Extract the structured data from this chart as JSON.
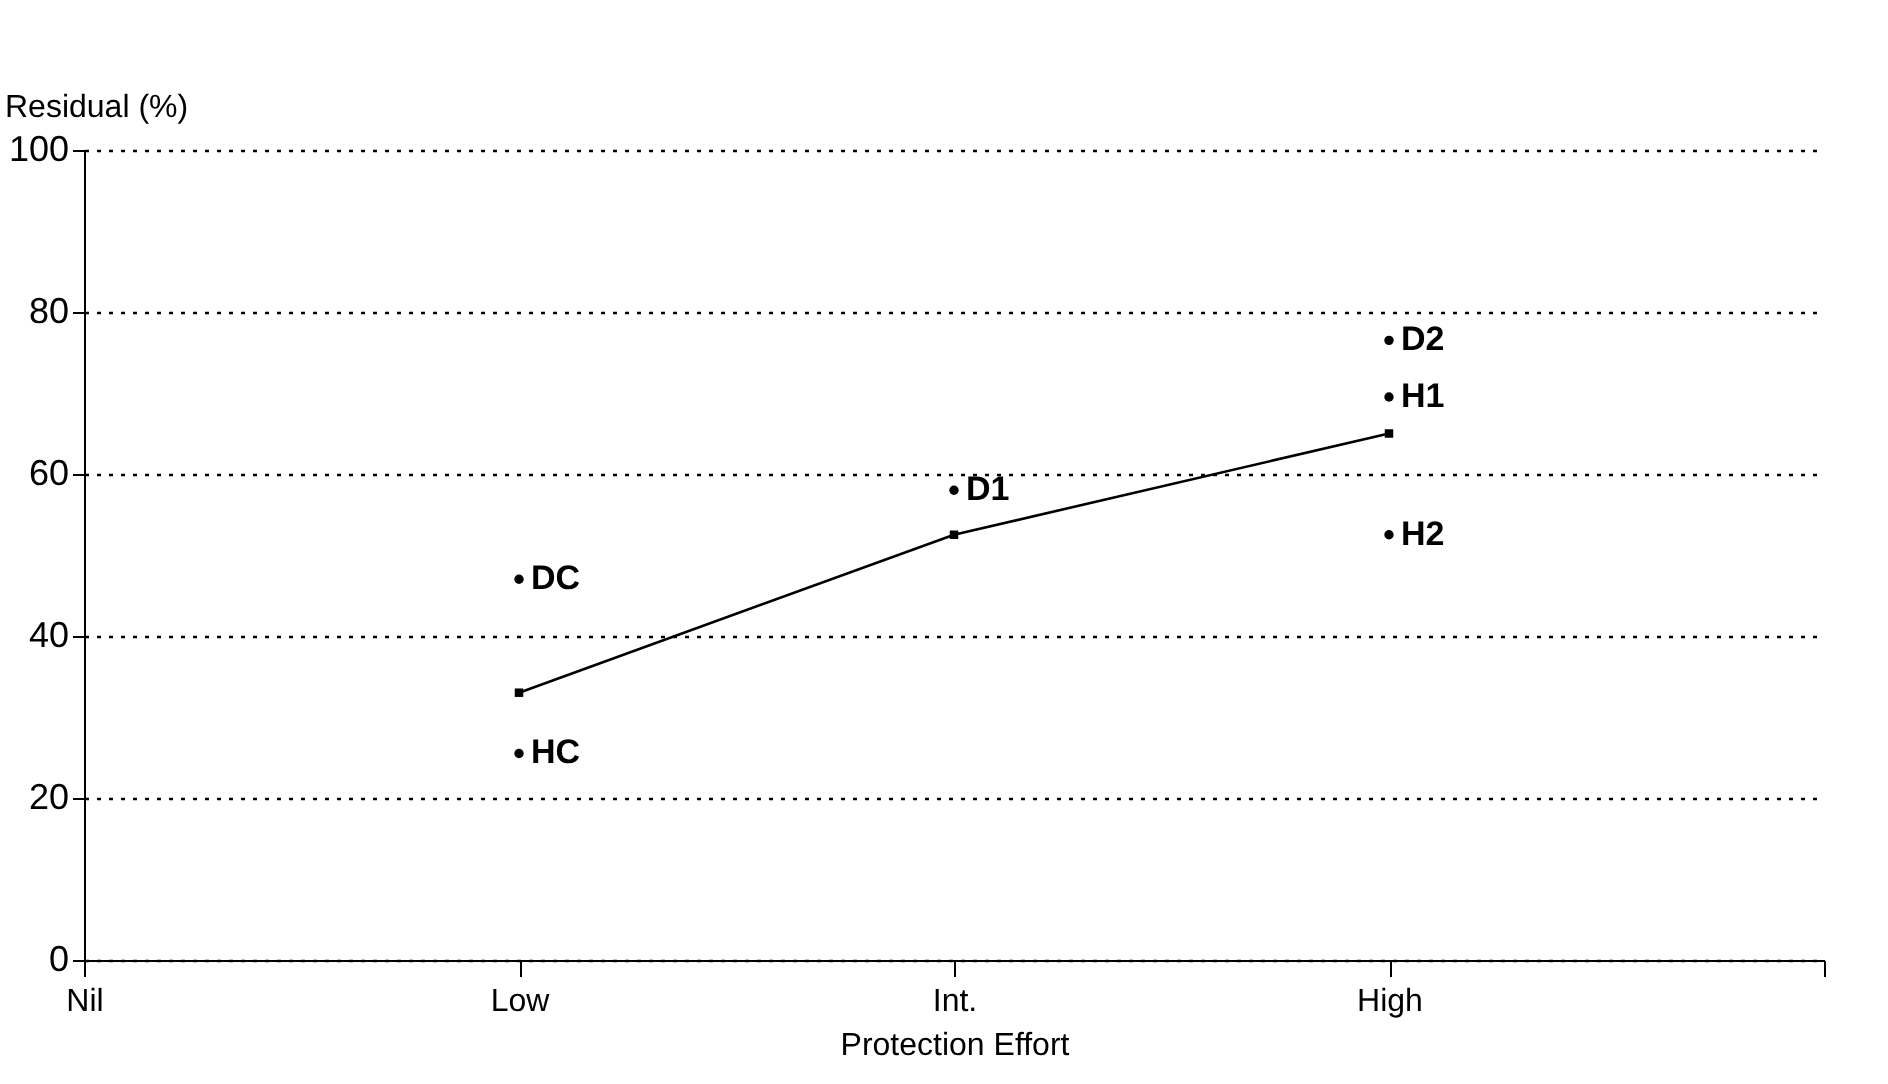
{
  "chart_data": {
    "type": "line",
    "xlabel": "Protection Effort",
    "ylabel": "Residual (%)",
    "categories": [
      "Nil",
      "Low",
      "Int.",
      "High",
      null
    ],
    "ylim": [
      0,
      100
    ],
    "yticks": [
      0,
      20,
      40,
      60,
      80,
      100
    ],
    "grid": "y",
    "line_style": "solid",
    "series": [
      {
        "color": "#000000",
        "marker": "square",
        "values": [
          null,
          33,
          52.5,
          65,
          null
        ]
      },
      {
        "type": "scatter",
        "marker": "circle",
        "name": "DC",
        "color": "#000000",
        "values": [
          null,
          47,
          null,
          null,
          null
        ]
      },
      {
        "type": "scatter",
        "marker": "circle",
        "name": "HC",
        "color": "#000000",
        "values": [
          null,
          25.5,
          null,
          null,
          null
        ]
      },
      {
        "type": "scatter",
        "marker": "circle",
        "name": "D1",
        "color": "#000000",
        "values": [
          null,
          null,
          58,
          null,
          null
        ]
      },
      {
        "type": "scatter",
        "marker": "circle",
        "name": "D2",
        "color": "#000000",
        "values": [
          null,
          null,
          null,
          76.5,
          null
        ]
      },
      {
        "type": "scatter",
        "marker": "circle",
        "name": "H1",
        "color": "#000000",
        "values": [
          null,
          null,
          null,
          69.5,
          null
        ]
      },
      {
        "type": "scatter",
        "marker": "circle",
        "name": "H2",
        "color": "#000000",
        "values": [
          null,
          null,
          null,
          52.5,
          null
        ]
      }
    ]
  }
}
